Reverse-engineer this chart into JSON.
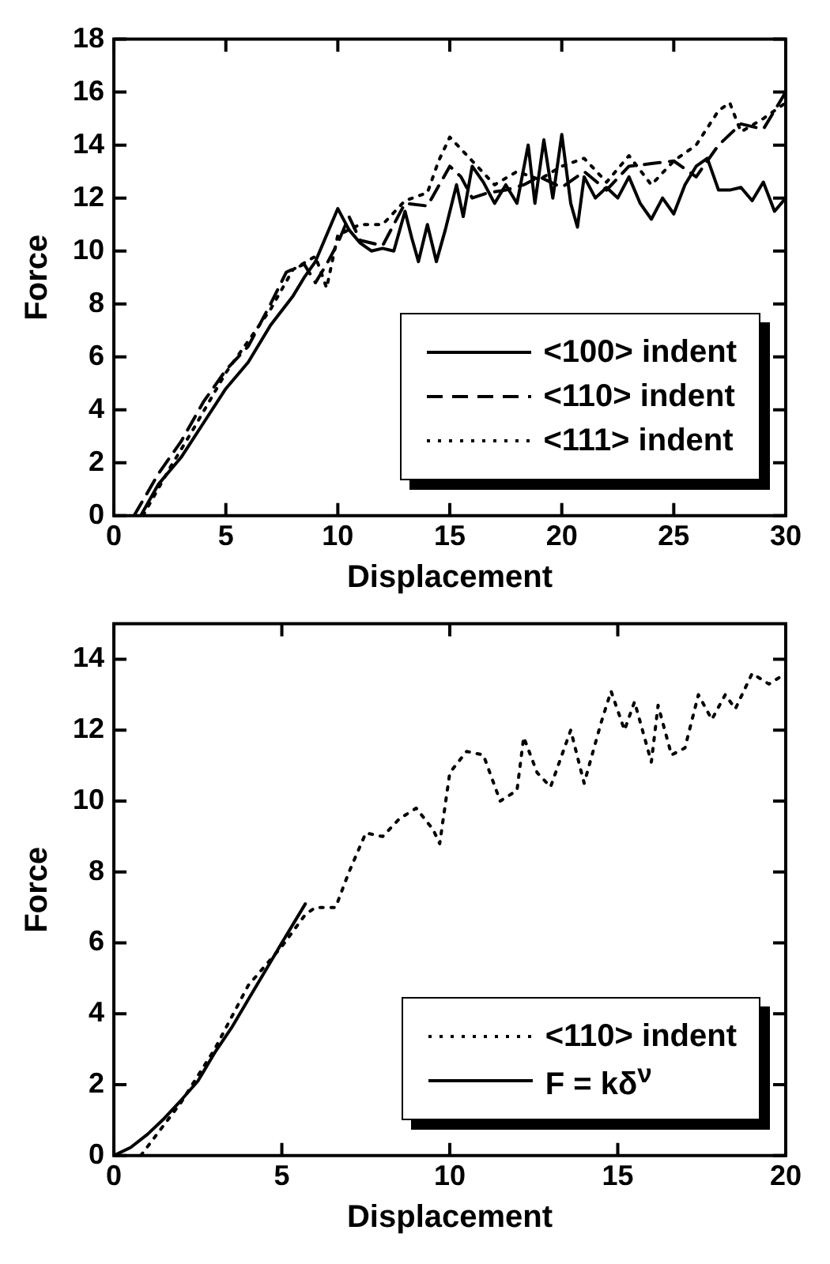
{
  "chart_data": [
    {
      "type": "line",
      "xlabel": "Displacement",
      "ylabel": "Force",
      "xlim": [
        0,
        30
      ],
      "ylim": [
        0,
        18
      ],
      "xticks": [
        0,
        5,
        10,
        15,
        20,
        25,
        30
      ],
      "yticks": [
        0,
        2,
        4,
        6,
        8,
        10,
        12,
        14,
        16,
        18
      ],
      "grid": false,
      "legend": "bottom right",
      "marker": "none",
      "series": [
        {
          "name": "<100> indent",
          "color": "#000000",
          "line_style": "solid",
          "x": [
            1.2,
            2,
            3,
            4,
            5,
            6,
            7,
            8,
            8.5,
            9,
            10,
            10.5,
            11,
            11.5,
            12,
            12.5,
            13,
            13.3,
            13.6,
            14,
            14.4,
            14.8,
            15.3,
            15.6,
            16,
            16.5,
            17,
            17.5,
            18,
            18.5,
            18.8,
            19.2,
            19.6,
            20,
            20.4,
            20.7,
            21,
            21.5,
            22,
            22.5,
            23,
            23.5,
            24,
            24.5,
            25,
            25.5,
            26,
            26.5,
            27,
            27.5,
            28,
            28.5,
            29,
            29.5,
            30
          ],
          "values": [
            0,
            1.2,
            2.2,
            3.5,
            4.8,
            5.8,
            7.2,
            8.3,
            9,
            9.6,
            11.6,
            10.8,
            10.3,
            10,
            10.1,
            10,
            11.5,
            10.5,
            9.6,
            11,
            9.6,
            10.8,
            12.5,
            11.3,
            13.2,
            12.6,
            11.8,
            12.5,
            11.8,
            14,
            11.8,
            14.2,
            12,
            14.4,
            11.8,
            10.9,
            12.8,
            12,
            12.4,
            12,
            12.8,
            11.8,
            11.2,
            12,
            11.4,
            12.5,
            13.2,
            13.5,
            12.3,
            12.3,
            12.4,
            11.9,
            12.6,
            11.5,
            12
          ]
        },
        {
          "name": "<110> indent",
          "color": "#000000",
          "line_style": "dashed",
          "x": [
            0.9,
            2,
            3,
            4,
            5,
            6,
            7,
            7.7,
            8.5,
            9,
            9.5,
            10,
            10.5,
            11,
            12,
            13,
            14,
            15,
            15.5,
            16,
            16.7,
            17.5,
            18.3,
            19,
            20,
            21,
            22,
            23,
            24,
            25,
            26,
            27,
            28,
            29,
            30
          ],
          "values": [
            0,
            1.6,
            2.8,
            4.3,
            5.5,
            6.4,
            8,
            9.2,
            9.5,
            8.8,
            9.5,
            10.3,
            11.3,
            10.4,
            10.2,
            11.8,
            11.7,
            13.2,
            12.8,
            12,
            12.2,
            12.3,
            12.5,
            12.8,
            12.4,
            13,
            12.3,
            13.2,
            13.3,
            13.4,
            12.8,
            14,
            14.8,
            14.6,
            16
          ]
        },
        {
          "name": "<111> indent",
          "color": "#000000",
          "line_style": "dotted",
          "x": [
            1.3,
            2.5,
            3.5,
            5,
            6,
            7,
            8,
            9,
            9.5,
            10,
            11,
            12,
            13,
            14,
            14.5,
            15,
            16,
            17,
            18,
            19,
            20,
            21,
            22,
            23,
            24,
            25,
            26,
            27,
            27.5,
            28,
            29,
            30
          ],
          "values": [
            0,
            1.8,
            3.2,
            5.4,
            6.6,
            7.8,
            9.3,
            9.8,
            8.6,
            10.6,
            11,
            11,
            11.9,
            12.2,
            13.4,
            14.3,
            13.4,
            12.5,
            13,
            12.7,
            13.2,
            13.5,
            12.6,
            13.6,
            12.5,
            13.4,
            14,
            15.3,
            15.6,
            14.5,
            15,
            15.6
          ]
        }
      ]
    },
    {
      "type": "line",
      "xlabel": "Displacement",
      "ylabel": "Force",
      "xlim": [
        0,
        20
      ],
      "ylim": [
        0,
        15
      ],
      "xticks": [
        0,
        5,
        10,
        15,
        20
      ],
      "yticks": [
        0,
        2,
        4,
        6,
        8,
        10,
        12,
        14
      ],
      "grid": false,
      "legend": "bottom right",
      "marker": "none",
      "series": [
        {
          "name": "<110> indent",
          "color": "#000000",
          "line_style": "dotted",
          "x": [
            0.8,
            1.2,
            2,
            3,
            4,
            5,
            5.7,
            6,
            6.6,
            7,
            7.5,
            8,
            8.5,
            9,
            9.5,
            9.7,
            10,
            10.5,
            11,
            11.5,
            12,
            12.2,
            12.6,
            13,
            13.6,
            14,
            14.5,
            14.8,
            15.2,
            15.5,
            16,
            16.2,
            16.6,
            17,
            17.4,
            17.8,
            18.2,
            18.5,
            19,
            19.5,
            20
          ],
          "values": [
            0,
            0.5,
            1.5,
            3,
            4.8,
            5.9,
            6.8,
            7,
            7,
            8,
            9.1,
            9,
            9.5,
            9.8,
            9.2,
            8.8,
            10.8,
            11.4,
            11.3,
            10,
            10.3,
            11.8,
            10.8,
            10.4,
            12,
            10.5,
            12.2,
            13.1,
            12,
            12.8,
            11.1,
            12.7,
            11.3,
            11.5,
            13,
            12.3,
            13,
            12.6,
            13.6,
            13.3,
            13.6
          ]
        },
        {
          "type": "line",
          "name": "F = kδ$^{ν}$",
          "color": "#000000",
          "line_style": "solid",
          "x": [
            0,
            0.5,
            1,
            1.5,
            2,
            2.5,
            3,
            3.5,
            4,
            4.5,
            5,
            5.7
          ],
          "values": [
            0,
            0.23,
            0.6,
            1.05,
            1.56,
            2.1,
            2.9,
            3.6,
            4.4,
            5.2,
            6.0,
            7.1
          ]
        }
      ]
    }
  ]
}
